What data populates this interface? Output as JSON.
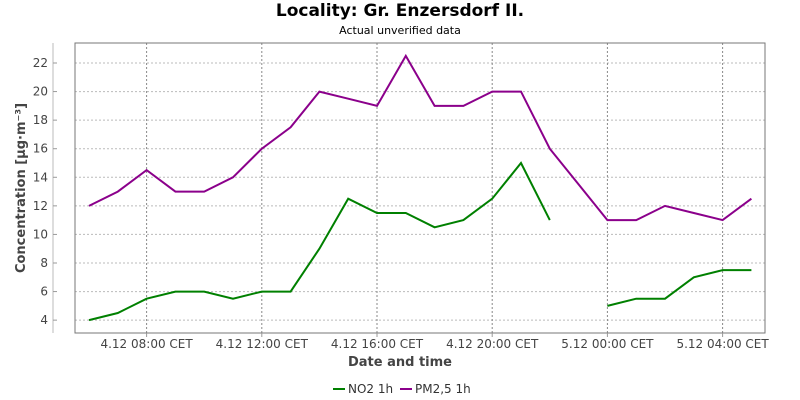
{
  "chart_data": {
    "type": "line",
    "title": "Locality: Gr. Enzersdorf II.",
    "subtitle": "Actual unverified data",
    "xlabel": "Date and time",
    "ylabel": "Concentration [µg·m⁻³]",
    "x": [
      "4.12 06:00",
      "4.12 07:00",
      "4.12 08:00",
      "4.12 09:00",
      "4.12 10:00",
      "4.12 11:00",
      "4.12 12:00",
      "4.12 13:00",
      "4.12 14:00",
      "4.12 15:00",
      "4.12 16:00",
      "4.12 17:00",
      "4.12 18:00",
      "4.12 19:00",
      "4.12 20:00",
      "4.12 21:00",
      "4.12 22:00",
      "4.12 23:00",
      "5.12 00:00",
      "5.12 01:00",
      "5.12 02:00",
      "5.12 03:00",
      "5.12 04:00",
      "5.12 05:00"
    ],
    "x_ticks": [
      "4.12 08:00 CET",
      "4.12 12:00 CET",
      "4.12 16:00 CET",
      "4.12 20:00 CET",
      "5.12 00:00 CET",
      "5.12 04:00 CET"
    ],
    "y_ticks": [
      4,
      6,
      8,
      10,
      12,
      14,
      16,
      18,
      20,
      22
    ],
    "ylim": [
      3.1,
      23.4
    ],
    "grid": true,
    "legend_position": "bottom",
    "series": [
      {
        "name": "NO2 1h",
        "color": "#008000",
        "values": [
          4,
          4.5,
          5.5,
          6,
          6,
          5.5,
          6,
          6,
          9,
          12.5,
          11.5,
          11.5,
          10.5,
          11,
          12.5,
          15,
          11,
          null,
          5,
          5.5,
          5.5,
          7,
          7.5,
          7.5
        ]
      },
      {
        "name": "PM2,5 1h",
        "color": "#8b008b",
        "values": [
          12,
          13,
          14.5,
          13,
          13,
          14,
          16,
          17.5,
          20,
          19.5,
          19,
          22.5,
          19,
          19,
          20,
          20,
          16,
          13.5,
          11,
          11,
          12,
          11.5,
          11,
          12.5
        ]
      }
    ]
  }
}
